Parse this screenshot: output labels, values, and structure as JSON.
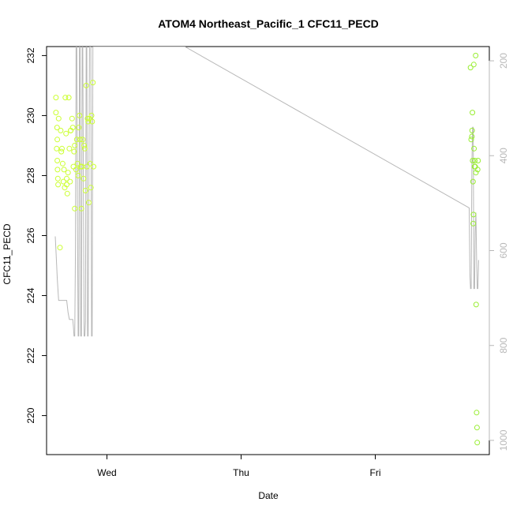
{
  "chart_data": {
    "type": "scatter",
    "title": "ATOM4 Northeast_Pacific_1 CFC11_PECD",
    "xlabel": "Date",
    "ylabel": "CFC11_PECD",
    "x_ticks": [
      "Wed",
      "Thu",
      "Fri"
    ],
    "x_tick_days": [
      0,
      1,
      2
    ],
    "xlim_days": [
      -0.45,
      2.85
    ],
    "ylim": [
      218.7,
      232.3
    ],
    "y_ticks": [
      220,
      222,
      224,
      226,
      228,
      230,
      232
    ],
    "y2_label": "",
    "y2_ticks": [
      200,
      400,
      600,
      800,
      1000
    ],
    "y2lim": [
      1030,
      170
    ],
    "y2_reversed": true,
    "colors": {
      "points_early": "#ccff33",
      "points_late": "#99ee33",
      "pressure_line": "#b8b8b8",
      "axis": "#000000",
      "right_axis": "#b8b8b8"
    },
    "series": [
      {
        "kind": "points",
        "x": [
          -0.38,
          -0.38,
          -0.37,
          -0.375,
          -0.372,
          -0.37,
          -0.368,
          -0.366,
          -0.364,
          -0.36,
          -0.35,
          -0.345,
          -0.34,
          -0.335,
          -0.33,
          -0.325,
          -0.32,
          -0.315,
          -0.31,
          -0.305,
          -0.3,
          -0.3,
          -0.295,
          -0.29,
          -0.285,
          -0.28,
          -0.275,
          -0.27,
          -0.27,
          -0.26,
          -0.255,
          -0.25,
          -0.245,
          -0.24,
          -0.24,
          -0.23,
          -0.225,
          -0.22,
          -0.215,
          -0.21,
          -0.205,
          -0.2,
          -0.195,
          -0.19,
          -0.185,
          -0.18,
          -0.175,
          -0.17,
          -0.165,
          -0.16,
          -0.155,
          -0.15,
          -0.145,
          -0.14,
          -0.135,
          -0.13,
          -0.125,
          -0.12,
          -0.115,
          -0.11,
          -0.105,
          -0.1
        ],
        "y": [
          230.6,
          230.1,
          229.2,
          228.9,
          229.6,
          228.5,
          228.2,
          227.9,
          227.7,
          229.9,
          225.6,
          229.5,
          228.8,
          228.9,
          228.4,
          227.8,
          228.2,
          227.6,
          230.6,
          229.4,
          227.9,
          227.7,
          227.4,
          228.1,
          230.6,
          228.9,
          227.8,
          229.5,
          229.5,
          229.9,
          229.6,
          228.3,
          228.8,
          229.0,
          226.9,
          228.2,
          229.2,
          228.4,
          228.0,
          229.6,
          230.0,
          229.2,
          228.3,
          226.9,
          228.3,
          229.2,
          227.9,
          229.0,
          228.9,
          227.5,
          231.0,
          228.3,
          229.9,
          229.8,
          227.1,
          229.9,
          228.4,
          227.6,
          230.0,
          229.8,
          231.1,
          228.3
        ],
        "color": "#ccff33"
      },
      {
        "kind": "points",
        "x": [
          2.71,
          2.715,
          2.72,
          2.722,
          2.724,
          2.726,
          2.728,
          2.73,
          2.732,
          2.734,
          2.736,
          2.74,
          2.742,
          2.745,
          2.748,
          2.75,
          2.752,
          2.755,
          2.758,
          2.76,
          2.763,
          2.766
        ],
        "y": [
          231.6,
          229.2,
          229.3,
          229.5,
          230.1,
          228.5,
          227.8,
          226.4,
          226.7,
          231.7,
          228.9,
          228.3,
          228.5,
          228.3,
          232.0,
          228.1,
          223.7,
          220.1,
          219.6,
          219.1,
          228.2,
          228.5
        ],
        "color": "#99ee33"
      },
      {
        "kind": "line",
        "axis": "right",
        "x": [
          -0.385,
          -0.38,
          -0.37,
          -0.36,
          -0.35,
          -0.34,
          -0.33,
          -0.32,
          -0.31,
          -0.3,
          -0.29,
          -0.28,
          -0.27,
          -0.26,
          -0.255,
          -0.25,
          -0.245,
          -0.24,
          -0.235,
          -0.23,
          -0.225,
          -0.22,
          -0.215,
          -0.21,
          -0.205,
          -0.2,
          -0.195,
          -0.19,
          -0.185,
          -0.18,
          -0.175,
          -0.17,
          -0.165,
          -0.16,
          -0.155,
          -0.15,
          -0.145,
          -0.14,
          -0.135,
          -0.13,
          -0.125,
          -0.12,
          -0.115,
          -0.11,
          -0.105,
          -0.1,
          -0.09,
          0.58,
          2.7,
          2.705,
          2.71,
          2.715,
          2.72,
          2.725,
          2.73,
          2.735,
          2.74,
          2.745,
          2.75,
          2.755,
          2.76,
          2.765,
          2.77
        ],
        "y": [
          570,
          600,
          660,
          705,
          705,
          705,
          705,
          705,
          705,
          705,
          730,
          745,
          745,
          745,
          745,
          760,
          780,
          780,
          600,
          170,
          170,
          520,
          780,
          780,
          170,
          170,
          780,
          780,
          170,
          170,
          520,
          780,
          780,
          750,
          170,
          170,
          780,
          780,
          520,
          170,
          170,
          170,
          780,
          780,
          170,
          170,
          170,
          170,
          510,
          650,
          680,
          680,
          420,
          340,
          340,
          680,
          680,
          560,
          520,
          620,
          680,
          680,
          620
        ]
      }
    ]
  }
}
